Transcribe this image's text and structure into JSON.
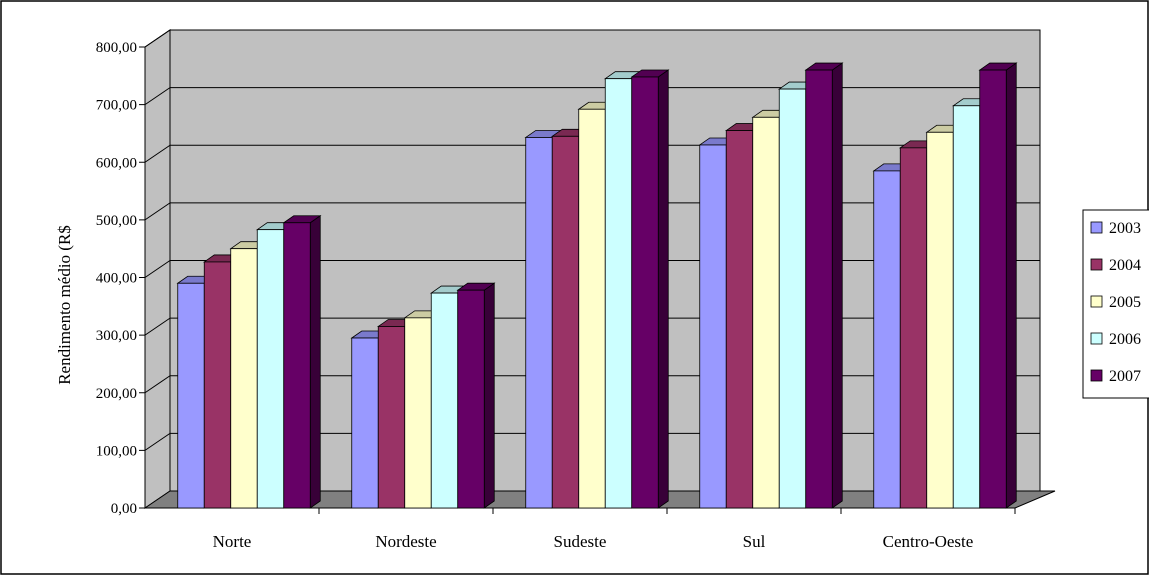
{
  "chart_data": {
    "type": "bar",
    "title": "",
    "xlabel": "",
    "ylabel": "Rendimento médio (R$",
    "ylim": [
      0,
      800
    ],
    "ytick_values": [
      0,
      100,
      200,
      300,
      400,
      500,
      600,
      700,
      800
    ],
    "ytick_labels": [
      "0,00",
      "100,00",
      "200,00",
      "300,00",
      "400,00",
      "500,00",
      "600,00",
      "700,00",
      "800,00"
    ],
    "grid": true,
    "legend_position": "right",
    "categories": [
      "Norte",
      "Nordeste",
      "Sudeste",
      "Sul",
      "Centro-Oeste"
    ],
    "series": [
      {
        "name": "2003",
        "color": "#9999FF",
        "values": [
          390,
          295,
          643,
          630,
          585
        ]
      },
      {
        "name": "2004",
        "color": "#993366",
        "values": [
          427,
          315,
          645,
          655,
          625
        ]
      },
      {
        "name": "2005",
        "color": "#FFFFCC",
        "values": [
          450,
          330,
          692,
          678,
          652
        ]
      },
      {
        "name": "2006",
        "color": "#CCFFFF",
        "values": [
          483,
          373,
          745,
          727,
          698
        ]
      },
      {
        "name": "2007",
        "color": "#660066",
        "values": [
          495,
          378,
          748,
          760,
          760
        ]
      }
    ],
    "legend_labels": [
      "2003",
      "2004",
      "2005",
      "2006",
      "2007"
    ],
    "style": {
      "plot_wall_color": "#C0C0C0",
      "floor_color": "#808080",
      "gridline_color": "#000000"
    }
  }
}
